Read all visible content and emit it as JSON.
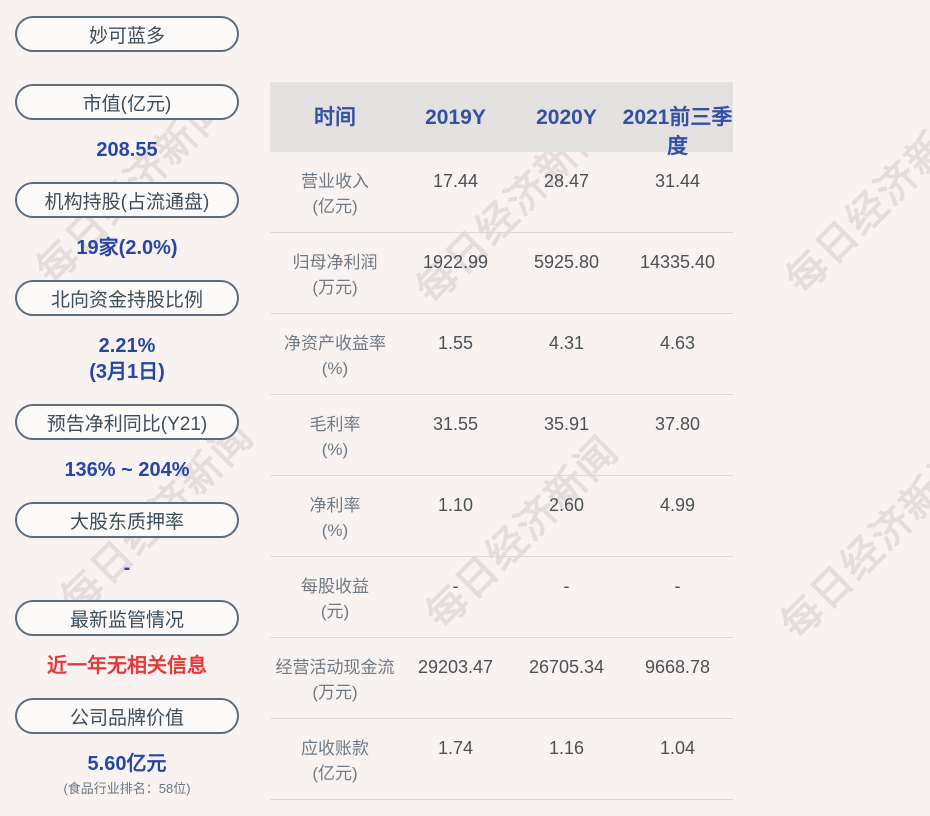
{
  "watermark": {
    "text": "每日经济新闻"
  },
  "colors": {
    "background": "#f8f3f1",
    "pill_border": "#5b6c7c",
    "pill_text": "#3e4d5a",
    "pill_fill": "#fcfaf9",
    "value_blue": "#2746a4",
    "header_blue": "#3450a2",
    "header_bg": "#e4e1e1",
    "row_label": "#6f7a85",
    "row_value": "#4b5156",
    "separator": "#dcd8d6",
    "alert_red": "#e23a3a",
    "note_gray": "#6b7680"
  },
  "sidebar": {
    "title": "妙可蓝多",
    "items": [
      {
        "label": "市值(亿元)",
        "value": "208.55"
      },
      {
        "label": "机构持股(占流通盘)",
        "value": "19家(2.0%)"
      },
      {
        "label": "北向资金持股比例",
        "value": "2.21%",
        "value2": "(3月1日)"
      },
      {
        "label": "预告净利同比(Y21)",
        "value": "136% ~ 204%"
      },
      {
        "label": "大股东质押率",
        "value": "-"
      },
      {
        "label": "最新监管情况",
        "value": "近一年无相关信息",
        "color": "red"
      },
      {
        "label": "公司品牌价值",
        "value": "5.60亿元",
        "note": "(食品行业排名：58位)"
      }
    ]
  },
  "table": {
    "header": [
      "时间",
      "2019Y",
      "2020Y",
      "2021前三季度"
    ],
    "rows": [
      {
        "name": "营业收入",
        "unit": "(亿元)",
        "values": [
          "17.44",
          "28.47",
          "31.44"
        ]
      },
      {
        "name": "归母净利润",
        "unit": "(万元)",
        "values": [
          "1922.99",
          "5925.80",
          "14335.40"
        ]
      },
      {
        "name": "净资产收益率",
        "unit": "(%)",
        "values": [
          "1.55",
          "4.31",
          "4.63"
        ]
      },
      {
        "name": "毛利率",
        "unit": "(%)",
        "values": [
          "31.55",
          "35.91",
          "37.80"
        ]
      },
      {
        "name": "净利率",
        "unit": "(%)",
        "values": [
          "1.10",
          "2.60",
          "4.99"
        ]
      },
      {
        "name": "每股收益",
        "unit": "(元)",
        "values": [
          "-",
          "-",
          "-"
        ]
      },
      {
        "name": "经营活动现金流",
        "unit": "(万元)",
        "values": [
          "29203.47",
          "26705.34",
          "9668.78"
        ]
      },
      {
        "name": "应收账款",
        "unit": "(亿元)",
        "values": [
          "1.74",
          "1.16",
          "1.04"
        ]
      }
    ]
  },
  "chart_data": {
    "type": "table",
    "title": "妙可蓝多",
    "columns": [
      "时间",
      "2019Y",
      "2020Y",
      "2021前三季度"
    ],
    "rows": [
      [
        "营业收入(亿元)",
        "17.44",
        "28.47",
        "31.44"
      ],
      [
        "归母净利润(万元)",
        "1922.99",
        "5925.80",
        "14335.40"
      ],
      [
        "净资产收益率(%)",
        "1.55",
        "4.31",
        "4.63"
      ],
      [
        "毛利率(%)",
        "31.55",
        "35.91",
        "37.80"
      ],
      [
        "净利率(%)",
        "1.10",
        "2.60",
        "4.99"
      ],
      [
        "每股收益(元)",
        "-",
        "-",
        "-"
      ],
      [
        "经营活动现金流(万元)",
        "29203.47",
        "26705.34",
        "9668.78"
      ],
      [
        "应收账款(亿元)",
        "1.74",
        "1.16",
        "1.04"
      ]
    ],
    "side_stats": {
      "市值(亿元)": "208.55",
      "机构持股(占流通盘)": "19家(2.0%)",
      "北向资金持股比例": "2.21% (3月1日)",
      "预告净利同比(Y21)": "136% ~ 204%",
      "大股东质押率": "-",
      "最新监管情况": "近一年无相关信息",
      "公司品牌价值": "5.60亿元 (食品行业排名：58位)"
    }
  }
}
